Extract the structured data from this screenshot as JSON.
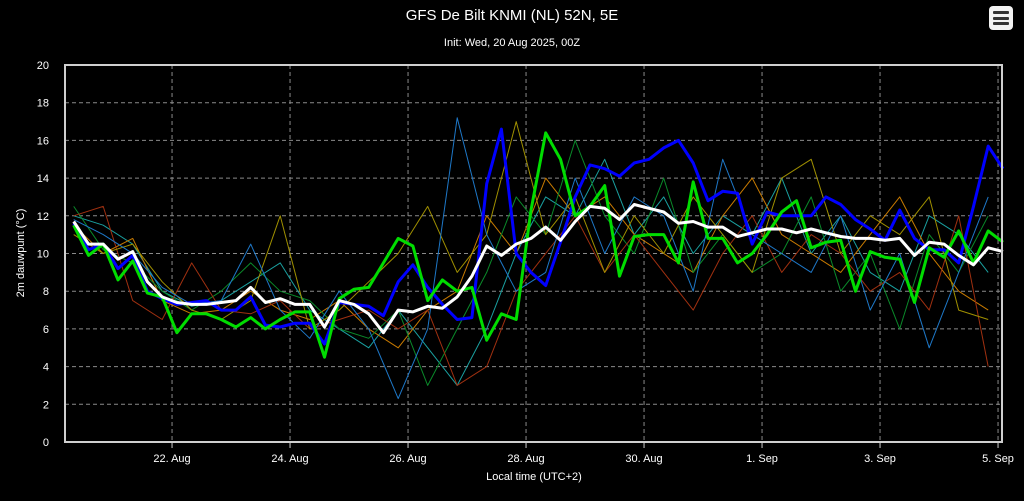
{
  "chart_data": {
    "type": "line",
    "title": "GFS De Bilt KNMI (NL) 52N, 5E",
    "subtitle": "Init: Wed, 20 Aug 2025, 00Z",
    "xlabel": "Local time (UTC+2)",
    "ylabel": "2m dauwpunt (°C)",
    "ylim": [
      0,
      20
    ],
    "yticks": [
      0,
      2,
      4,
      6,
      8,
      10,
      12,
      14,
      16,
      18,
      20
    ],
    "xticks": [
      {
        "date": "2025-08-22",
        "label": "22. Aug"
      },
      {
        "date": "2025-08-24",
        "label": "24. Aug"
      },
      {
        "date": "2025-08-26",
        "label": "26. Aug"
      },
      {
        "date": "2025-08-28",
        "label": "28. Aug"
      },
      {
        "date": "2025-08-30",
        "label": "30. Aug"
      },
      {
        "date": "2025-09-01",
        "label": "1. Sep"
      },
      {
        "date": "2025-09-03",
        "label": "3. Sep"
      },
      {
        "date": "2025-09-05",
        "label": "5. Sep"
      }
    ],
    "x_start": "2025-08-20T08:00",
    "grid": true,
    "background": "#000000",
    "ensemble_members": {
      "interval_hours": 12,
      "series": [
        {
          "color": "#1aa0a0",
          "values": [
            12,
            11.5,
            10.5,
            8,
            7.2,
            7.5,
            8.5,
            9.5,
            7,
            6,
            5,
            7,
            5,
            3,
            6,
            10,
            13,
            12,
            15,
            11,
            13,
            10,
            12,
            11,
            14,
            10,
            12,
            9,
            8,
            12,
            11,
            9
          ]
        },
        {
          "color": "#c87a00",
          "values": [
            11.5,
            10,
            10.8,
            7.5,
            6.8,
            7,
            8,
            7,
            6.5,
            7.5,
            6,
            5,
            7,
            8,
            12,
            10,
            14,
            12,
            13,
            11,
            10,
            9,
            12,
            14,
            11,
            10,
            9,
            11,
            13,
            10,
            8,
            7
          ]
        },
        {
          "color": "#0a8a2a",
          "values": [
            12.5,
            10.2,
            9.5,
            8,
            7,
            8,
            9.5,
            8,
            7.5,
            6,
            5.5,
            7,
            3,
            6,
            9,
            13,
            11,
            16,
            12,
            10,
            14,
            9,
            11,
            9,
            10,
            13,
            8,
            10,
            6,
            11,
            9,
            12
          ]
        },
        {
          "color": "#a03010",
          "values": [
            12,
            12.5,
            7.5,
            6.5,
            9.5,
            7,
            6.8,
            7.5,
            6,
            6.5,
            7,
            6,
            7,
            3,
            4,
            8,
            10,
            12,
            9,
            11,
            9,
            7,
            10,
            12,
            9,
            11,
            10,
            8,
            9,
            7,
            12,
            4
          ]
        },
        {
          "color": "#a09000",
          "values": [
            11,
            10,
            10.5,
            8.5,
            7,
            6.5,
            7.5,
            12,
            6,
            7,
            8.5,
            10,
            12.5,
            9,
            11,
            17,
            11,
            13,
            9,
            12,
            10,
            13,
            11,
            9,
            14,
            15,
            10,
            12,
            11,
            13,
            7,
            6.5
          ]
        },
        {
          "color": "#1e78c8",
          "values": [
            11.8,
            11,
            10,
            8.2,
            7.3,
            7.5,
            10.5,
            7,
            5.5,
            8,
            6,
            2.3,
            6,
            17.2,
            11,
            8,
            9,
            14,
            10,
            13,
            12,
            8,
            15,
            11,
            10,
            9,
            12,
            7,
            10,
            5,
            9,
            13
          ]
        }
      ]
    },
    "highlight_series": {
      "interval_hours": 6,
      "series": [
        {
          "color": "#0000ff",
          "values": [
            11.6,
            10.2,
            10.5,
            9.2,
            9.9,
            8.0,
            7.6,
            7.3,
            7.4,
            7.5,
            7.0,
            7.0,
            7.7,
            6.2,
            6.1,
            6.3,
            6.3,
            5.2,
            7.4,
            7.3,
            7.2,
            6.7,
            8.5,
            9.4,
            8.2,
            7.3,
            6.5,
            6.6,
            13.7,
            16.6,
            10.0,
            9.0,
            8.3,
            10.6,
            13.0,
            14.7,
            14.5,
            14.1,
            14.8,
            15.0,
            15.6,
            16.0,
            14.8,
            12.8,
            13.3,
            13.2,
            10.5,
            12.2,
            12.0,
            12.0,
            12.0,
            13.0,
            12.6,
            11.8,
            11.3,
            10.7,
            12.3,
            10.8,
            10.2,
            10.2,
            9.5,
            12.5,
            15.7,
            14.5
          ]
        },
        {
          "color": "#00dd00",
          "values": [
            11.5,
            9.9,
            10.5,
            8.6,
            9.6,
            7.9,
            7.7,
            5.8,
            6.8,
            6.8,
            6.5,
            6.1,
            6.6,
            6.0,
            6.5,
            6.9,
            6.9,
            4.5,
            7.6,
            8.1,
            8.2,
            9.5,
            10.8,
            10.4,
            7.5,
            8.6,
            8.0,
            8.2,
            5.4,
            6.8,
            6.5,
            12.3,
            16.4,
            15.0,
            12.0,
            12.5,
            13.6,
            8.8,
            10.9,
            11.0,
            11.0,
            9.5,
            13.8,
            10.8,
            10.8,
            9.5,
            10.0,
            11.0,
            12.2,
            12.8,
            10.3,
            10.6,
            10.7,
            8.0,
            10.1,
            9.8,
            9.7,
            7.4,
            10.3,
            9.8,
            11.2,
            9.5,
            11.2,
            10.6
          ]
        },
        {
          "color": "#ffffff",
          "values": [
            11.7,
            10.5,
            10.5,
            9.7,
            10.1,
            8.5,
            7.7,
            7.4,
            7.3,
            7.3,
            7.4,
            7.5,
            8.2,
            7.4,
            7.6,
            7.3,
            7.3,
            6.1,
            7.5,
            7.3,
            6.8,
            5.8,
            7.0,
            6.9,
            7.2,
            7.1,
            7.7,
            8.8,
            10.4,
            9.9,
            10.5,
            10.8,
            11.4,
            10.7,
            11.7,
            12.5,
            12.4,
            11.8,
            12.6,
            12.4,
            12.2,
            11.6,
            11.7,
            11.4,
            11.4,
            10.9,
            11.1,
            11.3,
            11.3,
            11.1,
            11.3,
            11.1,
            10.9,
            10.8,
            10.8,
            10.7,
            10.8,
            9.9,
            10.6,
            10.5,
            9.9,
            9.4,
            10.3,
            10.1
          ]
        }
      ]
    }
  },
  "toolbar": {
    "menu_icon": "hamburger-menu-icon"
  }
}
